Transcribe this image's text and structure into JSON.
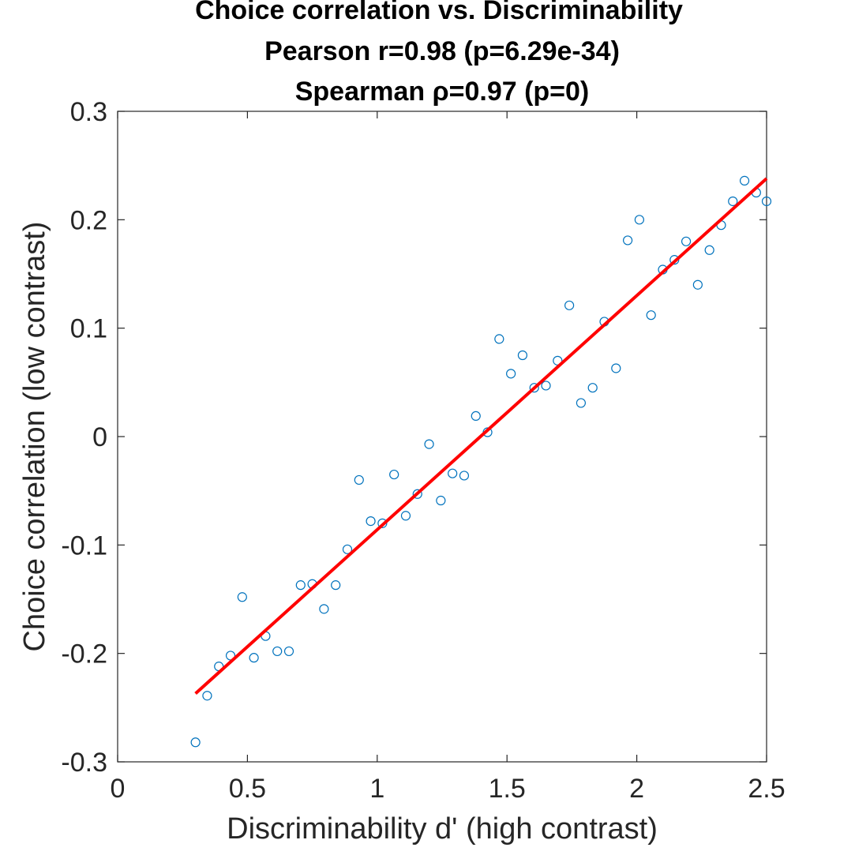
{
  "chart_data": {
    "type": "scatter",
    "title_lines": [
      "Choice correlation vs. Discriminability",
      "Pearson r=0.98 (p=6.29e-34)",
      "Spearman ρ=0.97 (p=0)"
    ],
    "xlabel": "Discriminability d' (high contrast)",
    "ylabel": "Choice correlation (low contrast)",
    "xlim": [
      0,
      2.5
    ],
    "ylim": [
      -0.3,
      0.3
    ],
    "xticks": [
      0,
      0.5,
      1,
      1.5,
      2,
      2.5
    ],
    "xtick_labels": [
      "0",
      "0.5",
      "1",
      "1.5",
      "2",
      "2.5"
    ],
    "yticks": [
      -0.3,
      -0.2,
      -0.1,
      0,
      0.1,
      0.2,
      0.3
    ],
    "ytick_labels": [
      "-0.3",
      "-0.2",
      "-0.1",
      "0",
      "0.1",
      "0.2",
      "0.3"
    ],
    "grid": false,
    "marker_color": "#0072BD",
    "fit_color": "#FF0000",
    "points": [
      {
        "x": 0.3,
        "y": -0.282
      },
      {
        "x": 0.345,
        "y": -0.239
      },
      {
        "x": 0.39,
        "y": -0.212
      },
      {
        "x": 0.435,
        "y": -0.202
      },
      {
        "x": 0.48,
        "y": -0.148
      },
      {
        "x": 0.525,
        "y": -0.204
      },
      {
        "x": 0.57,
        "y": -0.184
      },
      {
        "x": 0.615,
        "y": -0.198
      },
      {
        "x": 0.66,
        "y": -0.198
      },
      {
        "x": 0.705,
        "y": -0.137
      },
      {
        "x": 0.75,
        "y": -0.136
      },
      {
        "x": 0.795,
        "y": -0.159
      },
      {
        "x": 0.84,
        "y": -0.137
      },
      {
        "x": 0.885,
        "y": -0.104
      },
      {
        "x": 0.93,
        "y": -0.04
      },
      {
        "x": 0.975,
        "y": -0.078
      },
      {
        "x": 1.02,
        "y": -0.08
      },
      {
        "x": 1.065,
        "y": -0.035
      },
      {
        "x": 1.11,
        "y": -0.073
      },
      {
        "x": 1.155,
        "y": -0.053
      },
      {
        "x": 1.2,
        "y": -0.007
      },
      {
        "x": 1.245,
        "y": -0.059
      },
      {
        "x": 1.29,
        "y": -0.034
      },
      {
        "x": 1.335,
        "y": -0.036
      },
      {
        "x": 1.38,
        "y": 0.019
      },
      {
        "x": 1.425,
        "y": 0.004
      },
      {
        "x": 1.47,
        "y": 0.09
      },
      {
        "x": 1.515,
        "y": 0.058
      },
      {
        "x": 1.56,
        "y": 0.075
      },
      {
        "x": 1.605,
        "y": 0.045
      },
      {
        "x": 1.65,
        "y": 0.047
      },
      {
        "x": 1.695,
        "y": 0.07
      },
      {
        "x": 1.74,
        "y": 0.121
      },
      {
        "x": 1.785,
        "y": 0.031
      },
      {
        "x": 1.83,
        "y": 0.045
      },
      {
        "x": 1.875,
        "y": 0.106
      },
      {
        "x": 1.92,
        "y": 0.063
      },
      {
        "x": 1.965,
        "y": 0.181
      },
      {
        "x": 2.01,
        "y": 0.2
      },
      {
        "x": 2.055,
        "y": 0.112
      },
      {
        "x": 2.1,
        "y": 0.154
      },
      {
        "x": 2.145,
        "y": 0.163
      },
      {
        "x": 2.19,
        "y": 0.18
      },
      {
        "x": 2.235,
        "y": 0.14
      },
      {
        "x": 2.28,
        "y": 0.172
      },
      {
        "x": 2.325,
        "y": 0.195
      },
      {
        "x": 2.37,
        "y": 0.217
      },
      {
        "x": 2.415,
        "y": 0.236
      },
      {
        "x": 2.46,
        "y": 0.225
      },
      {
        "x": 2.5,
        "y": 0.217
      }
    ],
    "fit_line": {
      "x": [
        0.3,
        2.5
      ],
      "y": [
        -0.237,
        0.238
      ]
    }
  }
}
